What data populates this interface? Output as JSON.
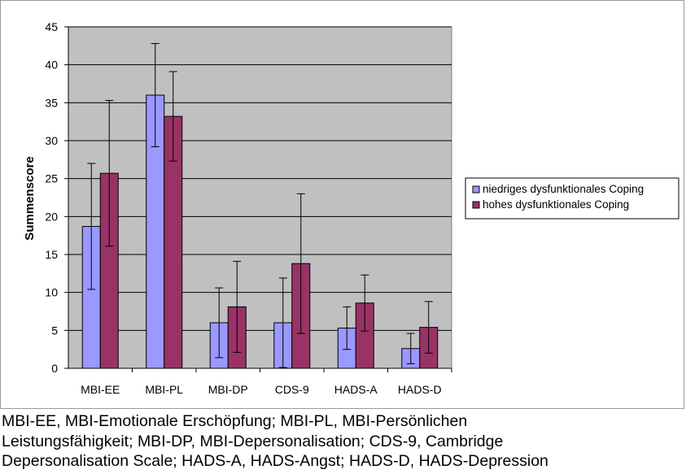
{
  "chart_data": {
    "type": "bar",
    "title": "",
    "xlabel": "",
    "ylabel": "Summenscore",
    "ylim": [
      0,
      45
    ],
    "yticks": [
      0,
      5,
      10,
      15,
      20,
      25,
      30,
      35,
      40,
      45
    ],
    "grid": true,
    "legend_position": "right",
    "categories": [
      "MBI-EE",
      "MBI-PL",
      "MBI-DP",
      "CDS-9",
      "HADS-A",
      "HADS-D"
    ],
    "series": [
      {
        "name": "niedriges dysfunktionales Coping",
        "color": "#9999ff",
        "values": [
          18.7,
          36.0,
          6.0,
          6.0,
          5.3,
          2.6
        ],
        "error": [
          8.3,
          6.8,
          4.6,
          5.9,
          2.8,
          2.0
        ]
      },
      {
        "name": "hohes dysfunktionales Coping",
        "color": "#993366",
        "values": [
          25.7,
          33.2,
          8.1,
          13.8,
          8.6,
          5.4
        ],
        "error": [
          9.6,
          5.9,
          6.0,
          9.2,
          3.7,
          3.4
        ]
      }
    ],
    "plot_background": "#c0c0c0"
  },
  "caption": {
    "line1": "MBI-EE, MBI-Emotionale Erschöpfung; MBI-PL, MBI-Persönlichen",
    "line2": "Leistungsfähigkeit; MBI-DP, MBI-Depersonalisation; CDS-9, Cambridge",
    "line3": "Depersonalisation Scale; HADS-A, HADS-Angst; HADS-D, HADS-Depression"
  }
}
